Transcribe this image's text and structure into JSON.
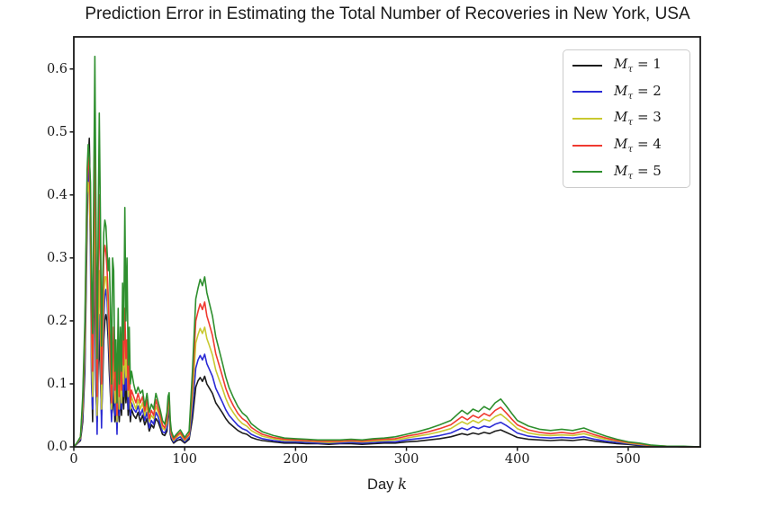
{
  "title": "Prediction Error in Estimating the Total Number of Recoveries in New York, USA",
  "axes": {
    "xlabel_text": "Day",
    "xlabel_math": "k",
    "xtick_labels": [
      "0",
      "100",
      "200",
      "300",
      "400",
      "500"
    ],
    "ytick_labels": [
      "0.0",
      "0.1",
      "0.2",
      "0.3",
      "0.4",
      "0.5",
      "0.6"
    ]
  },
  "legend": {
    "items": [
      {
        "m": "M",
        "sub": "τ",
        "rhs": " = 1",
        "color": "#1c1c1c"
      },
      {
        "m": "M",
        "sub": "τ",
        "rhs": " = 2",
        "color": "#2b2bd5"
      },
      {
        "m": "M",
        "sub": "τ",
        "rhs": " = 3",
        "color": "#c9c930"
      },
      {
        "m": "M",
        "sub": "τ",
        "rhs": " = 4",
        "color": "#f03a30"
      },
      {
        "m": "M",
        "sub": "τ",
        "rhs": " = 5",
        "color": "#2e8f2e"
      }
    ]
  },
  "colors": {
    "spine": "#1a1a1a",
    "legend_border": "#cccccc",
    "background": "#ffffff"
  },
  "chart_data": {
    "type": "line",
    "title": "Prediction Error in Estimating the Total Number of Recoveries in New York, USA",
    "xlabel": "Day k",
    "ylabel": "",
    "xlim": [
      0,
      565
    ],
    "ylim": [
      0,
      0.651
    ],
    "xticks": [
      0,
      100,
      200,
      300,
      400,
      500
    ],
    "yticks": [
      0,
      0.1,
      0.2,
      0.3,
      0.4,
      0.5,
      0.6
    ],
    "grid": false,
    "legend_position": "upper right",
    "x": [
      0,
      3,
      6,
      8,
      10,
      12,
      13,
      14,
      15,
      16,
      17,
      18,
      19,
      20,
      21,
      22,
      23,
      24,
      25,
      26,
      27,
      28,
      29,
      30,
      31,
      32,
      33,
      34,
      35,
      36,
      37,
      38,
      39,
      40,
      41,
      42,
      43,
      44,
      45,
      46,
      47,
      48,
      49,
      50,
      51,
      52,
      54,
      56,
      58,
      60,
      62,
      64,
      66,
      68,
      70,
      72,
      74,
      76,
      78,
      80,
      82,
      84,
      85,
      86,
      87,
      88,
      90,
      93,
      96,
      100,
      104,
      107,
      110,
      112,
      114,
      116,
      118,
      120,
      122,
      125,
      128,
      131,
      134,
      137,
      140,
      144,
      148,
      152,
      156,
      160,
      165,
      170,
      180,
      190,
      200,
      210,
      220,
      230,
      240,
      250,
      260,
      270,
      280,
      290,
      300,
      310,
      320,
      330,
      340,
      350,
      355,
      360,
      365,
      370,
      375,
      380,
      385,
      390,
      395,
      400,
      410,
      420,
      430,
      440,
      450,
      460,
      470,
      480,
      490,
      500,
      510,
      520,
      535,
      550,
      565
    ],
    "series": [
      {
        "name": "Mτ = 1",
        "color": "#1c1c1c",
        "values": [
          0,
          0.005,
          0.01,
          0.04,
          0.12,
          0.35,
          0.45,
          0.49,
          0.38,
          0.12,
          0.04,
          0.21,
          0.26,
          0.09,
          0.04,
          0.13,
          0.17,
          0.11,
          0.05,
          0.1,
          0.17,
          0.2,
          0.21,
          0.2,
          0.17,
          0.12,
          0.08,
          0.05,
          0.06,
          0.09,
          0.04,
          0.06,
          0.03,
          0.09,
          0.04,
          0.08,
          0.05,
          0.1,
          0.06,
          0.11,
          0.07,
          0.1,
          0.05,
          0.08,
          0.04,
          0.06,
          0.05,
          0.045,
          0.055,
          0.04,
          0.05,
          0.035,
          0.045,
          0.025,
          0.035,
          0.03,
          0.045,
          0.04,
          0.03,
          0.02,
          0.018,
          0.025,
          0.05,
          0.055,
          0.02,
          0.012,
          0.006,
          0.01,
          0.012,
          0.006,
          0.012,
          0.045,
          0.095,
          0.105,
          0.11,
          0.104,
          0.112,
          0.1,
          0.094,
          0.085,
          0.07,
          0.062,
          0.054,
          0.045,
          0.038,
          0.032,
          0.026,
          0.022,
          0.02,
          0.015,
          0.012,
          0.01,
          0.008,
          0.006,
          0.006,
          0.005,
          0.005,
          0.004,
          0.005,
          0.005,
          0.004,
          0.005,
          0.006,
          0.006,
          0.008,
          0.009,
          0.011,
          0.013,
          0.016,
          0.021,
          0.019,
          0.022,
          0.02,
          0.023,
          0.021,
          0.025,
          0.027,
          0.023,
          0.019,
          0.015,
          0.012,
          0.011,
          0.01,
          0.011,
          0.01,
          0.012,
          0.009,
          0.007,
          0.005,
          0.004,
          0.002,
          0.001,
          0.001,
          0,
          0
        ]
      },
      {
        "name": "Mτ = 2",
        "color": "#2b2bd5",
        "values": [
          0,
          0.005,
          0.012,
          0.05,
          0.14,
          0.38,
          0.44,
          0.42,
          0.3,
          0.1,
          0.06,
          0.26,
          0.32,
          0.12,
          0.02,
          0.16,
          0.21,
          0.14,
          0.03,
          0.12,
          0.2,
          0.24,
          0.25,
          0.23,
          0.19,
          0.14,
          0.09,
          0.04,
          0.08,
          0.12,
          0.05,
          0.08,
          0.02,
          0.12,
          0.05,
          0.1,
          0.06,
          0.13,
          0.08,
          0.14,
          0.09,
          0.12,
          0.06,
          0.1,
          0.05,
          0.07,
          0.06,
          0.055,
          0.065,
          0.05,
          0.06,
          0.042,
          0.055,
          0.03,
          0.042,
          0.036,
          0.055,
          0.048,
          0.036,
          0.024,
          0.022,
          0.03,
          0.058,
          0.062,
          0.024,
          0.015,
          0.008,
          0.013,
          0.016,
          0.008,
          0.015,
          0.06,
          0.125,
          0.138,
          0.145,
          0.138,
          0.147,
          0.132,
          0.124,
          0.112,
          0.093,
          0.082,
          0.071,
          0.059,
          0.05,
          0.042,
          0.034,
          0.029,
          0.026,
          0.02,
          0.016,
          0.013,
          0.01,
          0.008,
          0.008,
          0.007,
          0.006,
          0.006,
          0.006,
          0.007,
          0.006,
          0.007,
          0.008,
          0.008,
          0.011,
          0.013,
          0.015,
          0.018,
          0.022,
          0.03,
          0.027,
          0.032,
          0.029,
          0.033,
          0.031,
          0.036,
          0.039,
          0.034,
          0.028,
          0.022,
          0.017,
          0.015,
          0.014,
          0.015,
          0.014,
          0.016,
          0.012,
          0.009,
          0.007,
          0.005,
          0.003,
          0.001,
          0.001,
          0,
          0
        ]
      },
      {
        "name": "Mτ = 3",
        "color": "#c9c930",
        "values": [
          0,
          0.006,
          0.014,
          0.06,
          0.16,
          0.4,
          0.42,
          0.4,
          0.33,
          0.15,
          0.08,
          0.3,
          0.4,
          0.18,
          0.05,
          0.2,
          0.28,
          0.18,
          0.06,
          0.15,
          0.24,
          0.27,
          0.27,
          0.25,
          0.21,
          0.16,
          0.11,
          0.06,
          0.1,
          0.15,
          0.07,
          0.1,
          0.04,
          0.14,
          0.06,
          0.12,
          0.07,
          0.16,
          0.1,
          0.17,
          0.11,
          0.14,
          0.08,
          0.12,
          0.06,
          0.08,
          0.07,
          0.06,
          0.075,
          0.06,
          0.07,
          0.05,
          0.065,
          0.04,
          0.05,
          0.045,
          0.065,
          0.055,
          0.045,
          0.03,
          0.027,
          0.038,
          0.066,
          0.07,
          0.03,
          0.018,
          0.01,
          0.016,
          0.02,
          0.01,
          0.018,
          0.08,
          0.165,
          0.178,
          0.188,
          0.18,
          0.19,
          0.172,
          0.162,
          0.146,
          0.122,
          0.107,
          0.093,
          0.077,
          0.065,
          0.054,
          0.044,
          0.037,
          0.033,
          0.026,
          0.021,
          0.017,
          0.013,
          0.01,
          0.01,
          0.009,
          0.008,
          0.007,
          0.008,
          0.009,
          0.008,
          0.009,
          0.01,
          0.011,
          0.014,
          0.017,
          0.02,
          0.024,
          0.029,
          0.04,
          0.036,
          0.042,
          0.038,
          0.044,
          0.041,
          0.048,
          0.052,
          0.045,
          0.037,
          0.029,
          0.022,
          0.019,
          0.018,
          0.019,
          0.018,
          0.021,
          0.016,
          0.012,
          0.009,
          0.006,
          0.004,
          0.002,
          0.001,
          0,
          0
        ]
      },
      {
        "name": "Mτ = 4",
        "color": "#f03a30",
        "values": [
          0,
          0.006,
          0.015,
          0.07,
          0.18,
          0.42,
          0.46,
          0.44,
          0.38,
          0.2,
          0.12,
          0.36,
          0.49,
          0.25,
          0.08,
          0.28,
          0.4,
          0.26,
          0.1,
          0.2,
          0.3,
          0.32,
          0.31,
          0.28,
          0.24,
          0.19,
          0.13,
          0.07,
          0.13,
          0.19,
          0.09,
          0.13,
          0.05,
          0.17,
          0.08,
          0.15,
          0.09,
          0.2,
          0.13,
          0.22,
          0.14,
          0.17,
          0.09,
          0.14,
          0.07,
          0.09,
          0.08,
          0.07,
          0.085,
          0.07,
          0.08,
          0.057,
          0.075,
          0.045,
          0.058,
          0.05,
          0.075,
          0.062,
          0.05,
          0.035,
          0.03,
          0.045,
          0.072,
          0.078,
          0.035,
          0.02,
          0.012,
          0.018,
          0.023,
          0.012,
          0.02,
          0.1,
          0.2,
          0.215,
          0.227,
          0.218,
          0.23,
          0.208,
          0.196,
          0.177,
          0.148,
          0.13,
          0.112,
          0.093,
          0.079,
          0.065,
          0.053,
          0.045,
          0.04,
          0.031,
          0.025,
          0.02,
          0.015,
          0.012,
          0.011,
          0.01,
          0.009,
          0.009,
          0.009,
          0.01,
          0.009,
          0.011,
          0.012,
          0.013,
          0.017,
          0.02,
          0.024,
          0.029,
          0.035,
          0.048,
          0.043,
          0.05,
          0.046,
          0.053,
          0.049,
          0.058,
          0.063,
          0.054,
          0.044,
          0.035,
          0.027,
          0.023,
          0.021,
          0.023,
          0.021,
          0.025,
          0.019,
          0.014,
          0.01,
          0.007,
          0.005,
          0.002,
          0.001,
          0,
          0
        ]
      },
      {
        "name": "Mτ = 5",
        "color": "#2e8f2e",
        "values": [
          0,
          0.007,
          0.016,
          0.08,
          0.2,
          0.44,
          0.48,
          0.46,
          0.42,
          0.26,
          0.18,
          0.42,
          0.62,
          0.38,
          0.14,
          0.35,
          0.53,
          0.36,
          0.16,
          0.26,
          0.34,
          0.36,
          0.35,
          0.31,
          0.28,
          0.3,
          0.22,
          0.1,
          0.3,
          0.28,
          0.12,
          0.17,
          0.07,
          0.22,
          0.1,
          0.19,
          0.12,
          0.26,
          0.17,
          0.38,
          0.2,
          0.3,
          0.13,
          0.19,
          0.1,
          0.12,
          0.1,
          0.085,
          0.095,
          0.085,
          0.09,
          0.065,
          0.085,
          0.055,
          0.068,
          0.06,
          0.085,
          0.072,
          0.058,
          0.042,
          0.036,
          0.055,
          0.08,
          0.086,
          0.042,
          0.025,
          0.015,
          0.021,
          0.027,
          0.015,
          0.025,
          0.12,
          0.235,
          0.252,
          0.266,
          0.256,
          0.27,
          0.245,
          0.23,
          0.208,
          0.175,
          0.154,
          0.133,
          0.111,
          0.094,
          0.078,
          0.064,
          0.054,
          0.048,
          0.037,
          0.03,
          0.024,
          0.018,
          0.014,
          0.013,
          0.012,
          0.011,
          0.011,
          0.011,
          0.012,
          0.011,
          0.013,
          0.014,
          0.016,
          0.02,
          0.024,
          0.029,
          0.035,
          0.042,
          0.058,
          0.052,
          0.06,
          0.056,
          0.064,
          0.059,
          0.07,
          0.076,
          0.065,
          0.053,
          0.042,
          0.033,
          0.028,
          0.026,
          0.028,
          0.026,
          0.03,
          0.023,
          0.017,
          0.012,
          0.008,
          0.006,
          0.003,
          0.001,
          0.001,
          0
        ]
      }
    ]
  }
}
